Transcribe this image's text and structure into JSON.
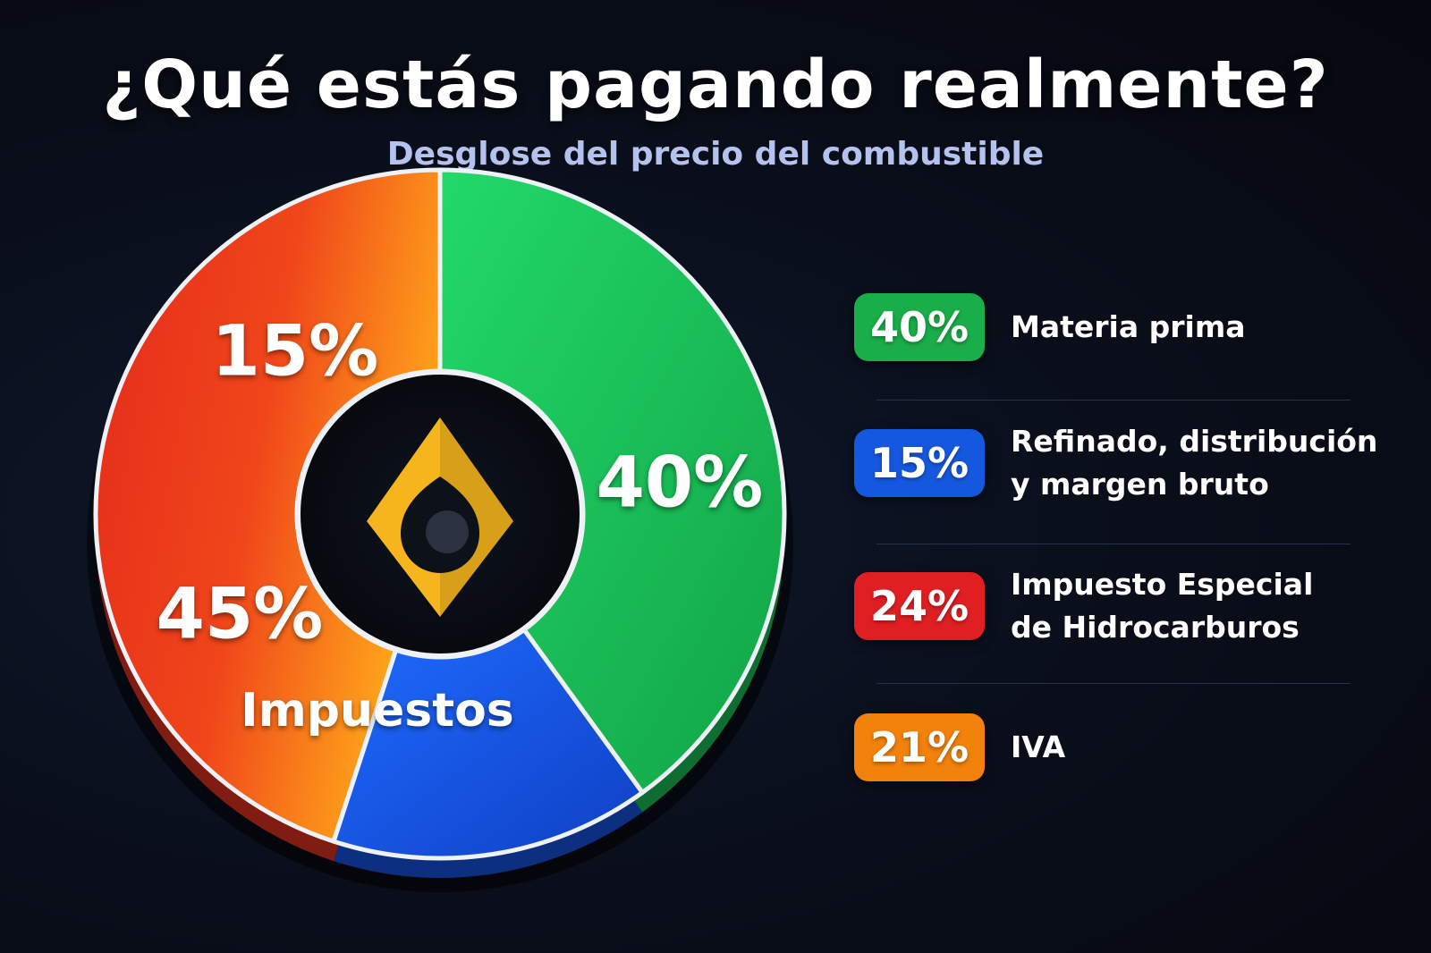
{
  "header": {
    "title": "¿Qué estás pagando realmente?",
    "subtitle": "Desglose del precio del combustible"
  },
  "chart_data": {
    "type": "pie",
    "title": "¿Qué estás pagando realmente?",
    "subtitle": "Desglose del precio del combustible",
    "slices": [
      {
        "label": "Materia prima",
        "value": 40,
        "display": "40%",
        "color": "#1ec65a"
      },
      {
        "label": "Refinado, distribución y margen bruto",
        "value": 15,
        "display": "15%",
        "color": "#1756e6"
      },
      {
        "label": "Impuestos",
        "value": 45,
        "display": "45%",
        "color": "#e8321f"
      }
    ],
    "slice_annotations": {
      "Impuestos": "Impuestos"
    },
    "legend": [
      {
        "value": "40%",
        "label_lines": [
          "Materia prima"
        ],
        "color": "#1aae4a"
      },
      {
        "value": "15%",
        "label_lines": [
          "Refinado, distribución",
          "y margen bruto"
        ],
        "color": "#1558e0"
      },
      {
        "value": "24%",
        "label_lines": [
          "Impuesto Especial",
          "de Hidrocarburos"
        ],
        "color": "#e01f23"
      },
      {
        "value": "21%",
        "label_lines": [
          "IVA"
        ],
        "color": "#f2820c"
      }
    ],
    "legend_placement": "right",
    "center_icon": "fuel-drop-diamond-icon",
    "icon_color": "#f6b51c"
  }
}
